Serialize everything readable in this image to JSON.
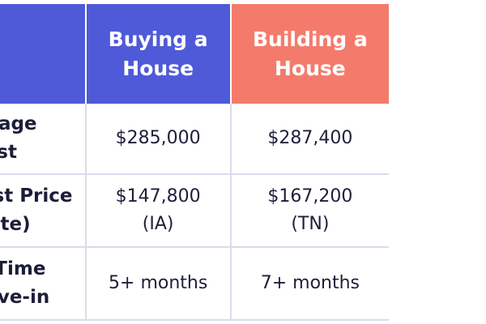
{
  "header": {
    "col_buy": [
      "Buying a",
      "House"
    ],
    "col_build": [
      "Building a",
      "House"
    ]
  },
  "rows": [
    {
      "label": [
        "Average",
        "Cost"
      ],
      "buy": [
        "$285,000"
      ],
      "build": [
        "$287,400"
      ]
    },
    {
      "label": [
        "Cheapest Price",
        "(State)"
      ],
      "buy": [
        "$147,800",
        "(IA)"
      ],
      "build": [
        "$167,200",
        "(TN)"
      ]
    },
    {
      "label": [
        "Avg. Time",
        "to Move-in"
      ],
      "buy": [
        "5+ months"
      ],
      "build": [
        "7+ months"
      ]
    }
  ],
  "colors": {
    "header_blue": "#4f5ad8",
    "header_coral": "#f47b6c",
    "grid_line": "#d8dcea",
    "text": "#1d1f3a"
  }
}
